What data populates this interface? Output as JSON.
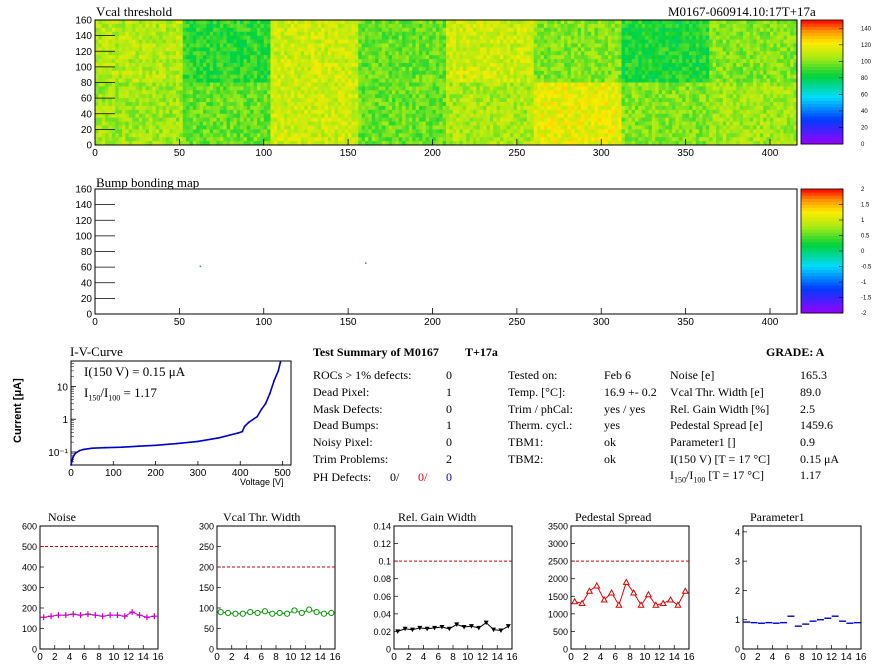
{
  "module_id": "M0167-060914.10:17T+17a",
  "vcal_map": {
    "title": "Vcal threshold",
    "x_ticks": [
      "0",
      "50",
      "100",
      "150",
      "200",
      "250",
      "300",
      "350",
      "400"
    ],
    "y_ticks": [
      "0",
      "20",
      "40",
      "60",
      "80",
      "100",
      "120",
      "140",
      "160"
    ],
    "cb_ticks": [
      "0",
      "20",
      "40",
      "60",
      "80",
      "100",
      "120",
      "140"
    ],
    "roc_levels_top": [
      108,
      88,
      112,
      96,
      112,
      100,
      86,
      100
    ],
    "roc_levels_bottom": [
      104,
      96,
      112,
      96,
      106,
      118,
      100,
      104
    ]
  },
  "bump_map": {
    "title": "Bump bonding map",
    "x_ticks": [
      "0",
      "50",
      "100",
      "150",
      "200",
      "250",
      "300",
      "350",
      "400"
    ],
    "y_ticks": [
      "0",
      "20",
      "40",
      "60",
      "80",
      "100",
      "120",
      "140",
      "160"
    ],
    "cb_ticks": [
      "-2",
      "-1.5",
      "-1",
      "-0.5",
      "0",
      "0.5",
      "1",
      "1.5",
      "2"
    ]
  },
  "iv": {
    "title": "I-V-Curve",
    "ylabel": "Current [μA]",
    "xlabel": "Voltage [V]",
    "x_ticks": [
      "0",
      "100",
      "200",
      "300",
      "400",
      "500"
    ],
    "y_ticks": [
      "10⁻¹",
      "1",
      "10"
    ],
    "annotation1": "I(150 V) = 0.15 μA",
    "annotation2_a": "I",
    "annotation2_sub1": "150",
    "annotation2_b": "/I",
    "annotation2_sub2": "100",
    "annotation2_c": " =  1.17"
  },
  "summary": {
    "title": "Test Summary of M0167",
    "temp_tag": "T+17a",
    "grade": "GRADE:  A",
    "col1": [
      {
        "label": "ROCs > 1% defects:",
        "value": "0"
      },
      {
        "label": "Dead Pixel:",
        "value": "1"
      },
      {
        "label": "Mask Defects:",
        "value": "0"
      },
      {
        "label": "Dead Bumps:",
        "value": "1"
      },
      {
        "label": "Noisy Pixel:",
        "value": "0"
      },
      {
        "label": "Trim Problems:",
        "value": "2"
      }
    ],
    "ph_label": "PH Defects:",
    "ph_values": [
      "0/",
      "0/",
      "0"
    ],
    "col2": [
      {
        "label": "Tested on:",
        "value": "Feb 6"
      },
      {
        "label": "Temp. [°C]:",
        "value": "16.9 +- 0.2"
      },
      {
        "label": "Trim / phCal:",
        "value": "yes / yes"
      },
      {
        "label": "Therm. cycl.:",
        "value": "yes"
      },
      {
        "label": "TBM1:",
        "value": "ok"
      },
      {
        "label": "TBM2:",
        "value": "ok"
      }
    ],
    "col3": [
      {
        "label": "Noise [e]",
        "value": "165.3"
      },
      {
        "label": "Vcal Thr. Width [e]",
        "value": "89.0"
      },
      {
        "label": "Rel. Gain Width [%]",
        "value": "2.5"
      },
      {
        "label": "Pedestal Spread [e]",
        "value": "1459.6"
      },
      {
        "label": "Parameter1 []",
        "value": "0.9"
      },
      {
        "label": "I(150 V) [T = 17 °C]",
        "value": "0.15 μA"
      }
    ],
    "ratio_label_a": "I",
    "ratio_sub1": "150",
    "ratio_label_b": "/I",
    "ratio_sub2": "100",
    "ratio_label_c": "  [T = 17 °C]",
    "ratio_value": "1.17"
  },
  "colors": {
    "noise": "#cc00cc",
    "vcal": "#009900",
    "gain": "#000000",
    "pedestal": "#dd0000",
    "param1": "#0000cc",
    "iv": "#0000cc",
    "limit": "#cc0000",
    "ph_red": "#dd0000",
    "ph_blue": "#0000cc"
  },
  "chart_data": [
    {
      "type": "heatmap",
      "title": "Vcal threshold",
      "xlim": [
        0,
        416
      ],
      "ylim": [
        0,
        160
      ],
      "zlim": [
        0,
        150
      ],
      "roc_cols_top": [
        0,
        52,
        104,
        156,
        208,
        260,
        312,
        364
      ],
      "note": "16 ROCs, mean thresholds per ROC (top row / bottom row)",
      "top_means": [
        108,
        88,
        112,
        96,
        112,
        100,
        86,
        100
      ],
      "bottom_means": [
        104,
        96,
        112,
        96,
        106,
        118,
        100,
        104
      ]
    },
    {
      "type": "heatmap",
      "title": "Bump bonding map",
      "xlim": [
        0,
        416
      ],
      "ylim": [
        0,
        160
      ],
      "zlim": [
        -2,
        2
      ],
      "points": [
        [
          62,
          62
        ],
        [
          160,
          66
        ]
      ]
    },
    {
      "type": "line",
      "title": "I-V-Curve",
      "xlabel": "Voltage [V]",
      "ylabel": "Current [μA]",
      "xlim": [
        0,
        520
      ],
      "ylog": true,
      "ylim": [
        0.04,
        60
      ],
      "x": [
        0,
        5,
        10,
        20,
        30,
        50,
        80,
        120,
        160,
        200,
        250,
        300,
        350,
        395,
        405,
        410,
        420,
        440,
        450,
        460,
        470,
        480,
        490,
        495
      ],
      "y": [
        0.04,
        0.07,
        0.09,
        0.11,
        0.12,
        0.13,
        0.135,
        0.14,
        0.15,
        0.16,
        0.18,
        0.21,
        0.27,
        0.38,
        0.42,
        0.6,
        0.8,
        1.2,
        2.0,
        3.0,
        6.0,
        15,
        30,
        55
      ]
    },
    {
      "type": "scatter",
      "title": "Noise",
      "xlim": [
        0,
        16
      ],
      "ylim": [
        0,
        600
      ],
      "limit": 500,
      "y_ticks": [
        0,
        100,
        200,
        300,
        400,
        500,
        600
      ],
      "x": [
        0,
        1,
        2,
        3,
        4,
        5,
        6,
        7,
        8,
        9,
        10,
        11,
        12,
        13,
        14,
        15
      ],
      "values": [
        155,
        160,
        165,
        165,
        170,
        165,
        170,
        165,
        160,
        165,
        165,
        160,
        180,
        165,
        155,
        160
      ]
    },
    {
      "type": "scatter",
      "title": "Vcal Thr. Width",
      "xlim": [
        0,
        16
      ],
      "ylim": [
        0,
        300
      ],
      "limit": 200,
      "y_ticks": [
        0,
        50,
        100,
        150,
        200,
        250,
        300
      ],
      "x": [
        0,
        1,
        2,
        3,
        4,
        5,
        6,
        7,
        8,
        9,
        10,
        11,
        12,
        13,
        14,
        15
      ],
      "values": [
        90,
        88,
        86,
        86,
        90,
        88,
        92,
        86,
        88,
        86,
        94,
        88,
        96,
        90,
        86,
        88
      ]
    },
    {
      "type": "scatter",
      "title": "Rel. Gain Width",
      "xlim": [
        0,
        16
      ],
      "ylim": [
        0,
        0.14
      ],
      "limit": 0.1,
      "y_ticks": [
        0,
        0.02,
        0.04,
        0.06,
        0.08,
        0.1,
        0.12,
        0.14
      ],
      "x": [
        0,
        1,
        2,
        3,
        4,
        5,
        6,
        7,
        8,
        9,
        10,
        11,
        12,
        13,
        14,
        15
      ],
      "values": [
        0.02,
        0.023,
        0.022,
        0.024,
        0.023,
        0.024,
        0.025,
        0.023,
        0.028,
        0.025,
        0.026,
        0.024,
        0.03,
        0.022,
        0.021,
        0.026
      ]
    },
    {
      "type": "scatter",
      "title": "Pedestal Spread",
      "xlim": [
        0,
        16
      ],
      "ylim": [
        0,
        3500
      ],
      "limit": 2500,
      "y_ticks": [
        0,
        500,
        1000,
        1500,
        2000,
        2500,
        3000,
        3500
      ],
      "x": [
        0,
        1,
        2,
        3,
        4,
        5,
        6,
        7,
        8,
        9,
        10,
        11,
        12,
        13,
        14,
        15
      ],
      "values": [
        1350,
        1300,
        1650,
        1800,
        1400,
        1600,
        1250,
        1900,
        1600,
        1250,
        1550,
        1250,
        1300,
        1400,
        1250,
        1650
      ]
    },
    {
      "type": "scatter",
      "title": "Parameter1",
      "xlim": [
        0,
        16
      ],
      "ylim": [
        0,
        4.2
      ],
      "limit": null,
      "y_ticks": [
        0,
        1,
        2,
        3,
        4
      ],
      "x": [
        0,
        1,
        2,
        3,
        4,
        5,
        6,
        7,
        8,
        9,
        10,
        11,
        12,
        13,
        14,
        15
      ],
      "values": [
        0.92,
        0.9,
        0.88,
        0.9,
        0.88,
        0.9,
        1.12,
        0.78,
        0.85,
        0.95,
        1.0,
        1.05,
        1.12,
        0.95,
        0.88,
        0.9
      ]
    }
  ]
}
